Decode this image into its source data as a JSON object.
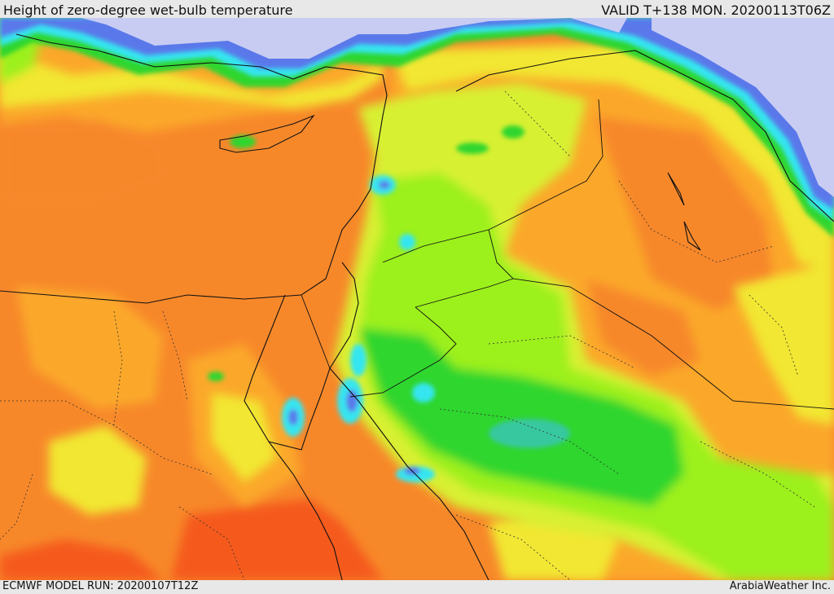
{
  "header": {
    "title": "Height of zero-degree wet-bulb temperature",
    "valid": "VALID T+138 MON. 20200113T06Z"
  },
  "footer": {
    "model_run": "ECMWF MODEL RUN: 20200107T12Z",
    "credit": "ArabiaWeather Inc."
  },
  "colors": {
    "dark_orange": "#f7882a",
    "orange": "#fba82a",
    "yellow": "#f2e732",
    "yellow_green": "#d8f033",
    "lime": "#9cf01e",
    "green": "#2fd62f",
    "teal": "#38c8a0",
    "cyan": "#34e6f0",
    "blue": "#5a78ea",
    "lavender": "#c8ccf2",
    "red_orange": "#f55a1e"
  }
}
